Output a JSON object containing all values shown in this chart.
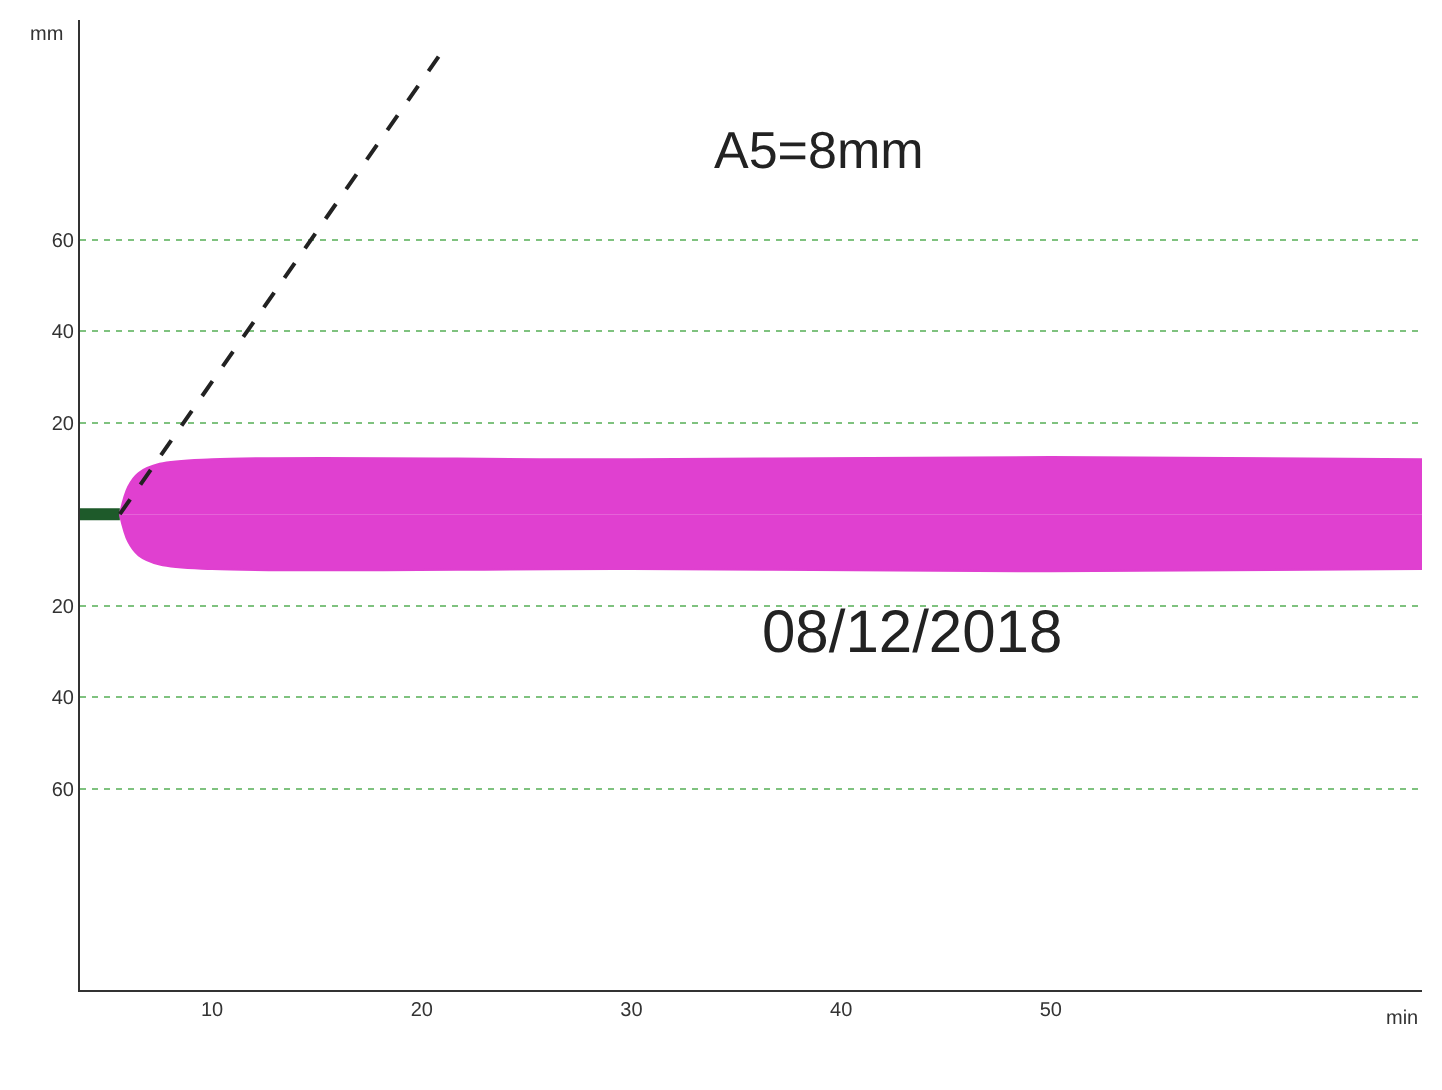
{
  "chart_data": {
    "type": "area",
    "xlabel": "min",
    "ylabel": "mm",
    "xlim": [
      3.7,
      67.7
    ],
    "xticks": [
      10,
      20,
      30,
      40,
      50
    ],
    "ylim": [
      -104,
      108
    ],
    "yticks": [
      {
        "value": 60,
        "label": "60"
      },
      {
        "value": 40,
        "label": "40"
      },
      {
        "value": 20,
        "label": "20"
      },
      {
        "value": -20,
        "label": "20"
      },
      {
        "value": -40,
        "label": "40"
      },
      {
        "value": -60,
        "label": "60"
      }
    ],
    "grid": "y",
    "series": [
      {
        "type": "line",
        "color": "#1e5a2a",
        "x": [
          3.7,
          5.6
        ],
        "values": [
          0,
          0
        ]
      },
      {
        "color": "#e040d0",
        "x": [
          5.6,
          6,
          6.5,
          7.5,
          10,
          30,
          50,
          67.7
        ],
        "values": [
          0,
          6,
          9,
          11,
          12,
          12,
          12.5,
          12
        ]
      },
      {
        "color": "#e040d0",
        "x": [
          5.6,
          6,
          6.5,
          7.5,
          10,
          30,
          50,
          67.7
        ],
        "values": [
          0,
          -6,
          -9,
          -11,
          -12,
          -12,
          -12.5,
          -12
        ]
      },
      {
        "type": "line",
        "color": "#222222",
        "line_style": "dashed",
        "x": [
          5.6,
          20.8
        ],
        "values": [
          0,
          100
        ]
      }
    ],
    "annotations": [
      "A5=8mm",
      "08/12/2018"
    ]
  }
}
